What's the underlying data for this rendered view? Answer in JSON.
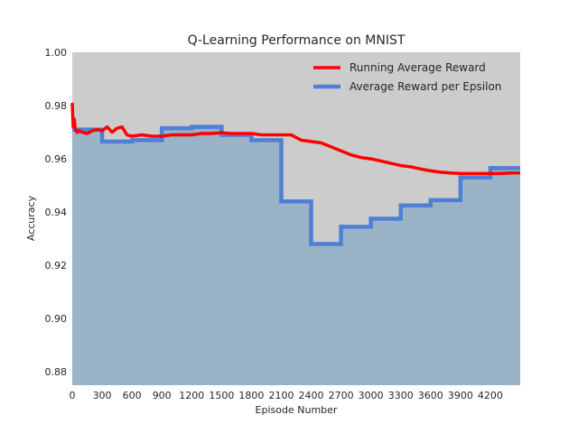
{
  "chart_data": {
    "type": "line",
    "title": "Q-Learning Performance on MNIST",
    "xlabel": "Episode Number",
    "ylabel": "Accuracy",
    "xlim": [
      0,
      4500
    ],
    "ylim": [
      0.875,
      1.0
    ],
    "xticks": [
      0,
      300,
      600,
      900,
      1200,
      1500,
      1800,
      2100,
      2400,
      2700,
      3000,
      3300,
      3600,
      3900,
      4200
    ],
    "xtick_labels": [
      "0",
      "300",
      "600",
      "900",
      "1200",
      "1500",
      "1800",
      "2100",
      "2400",
      "2700",
      "3000",
      "3300",
      "3600",
      "3900",
      "4200"
    ],
    "yticks": [
      0.88,
      0.9,
      0.92,
      0.94,
      0.96,
      0.98,
      1.0
    ],
    "ytick_labels": [
      "0.88",
      "0.90",
      "0.92",
      "0.94",
      "0.96",
      "0.98",
      "1.00"
    ],
    "grid": false,
    "background_color": "#cccccc",
    "legend_position": "top-right",
    "series": [
      {
        "name": "Running Average Reward",
        "color": "#ff0000",
        "style": "line",
        "x": [
          0,
          5,
          10,
          20,
          30,
          50,
          70,
          100,
          150,
          200,
          250,
          300,
          350,
          400,
          450,
          500,
          550,
          600,
          700,
          800,
          900,
          1000,
          1100,
          1200,
          1300,
          1400,
          1500,
          1600,
          1700,
          1800,
          1900,
          2000,
          2100,
          2200,
          2300,
          2400,
          2500,
          2600,
          2700,
          2800,
          2900,
          3000,
          3100,
          3200,
          3300,
          3400,
          3500,
          3600,
          3700,
          3800,
          3900,
          4000,
          4100,
          4200,
          4300,
          4400,
          4500
        ],
        "y": [
          0.981,
          0.976,
          0.972,
          0.975,
          0.971,
          0.97,
          0.9705,
          0.97,
          0.9695,
          0.9705,
          0.971,
          0.9705,
          0.972,
          0.97,
          0.9715,
          0.972,
          0.969,
          0.9685,
          0.969,
          0.9685,
          0.9685,
          0.969,
          0.969,
          0.969,
          0.9695,
          0.9695,
          0.9698,
          0.9695,
          0.9695,
          0.9695,
          0.969,
          0.969,
          0.969,
          0.969,
          0.967,
          0.9665,
          0.966,
          0.9645,
          0.963,
          0.9615,
          0.9605,
          0.96,
          0.9592,
          0.9583,
          0.9575,
          0.957,
          0.9562,
          0.9555,
          0.955,
          0.9547,
          0.9545,
          0.9545,
          0.9545,
          0.9545,
          0.9545,
          0.9547,
          0.9547
        ]
      },
      {
        "name": "Average Reward per Epsilon",
        "color": "#4f7fd6",
        "style": "step",
        "x": [
          0,
          300,
          600,
          900,
          1200,
          1500,
          1800,
          2100,
          2400,
          2700,
          3000,
          3300,
          3600,
          3900,
          4200,
          4500
        ],
        "y": [
          0.971,
          0.9665,
          0.967,
          0.9715,
          0.972,
          0.969,
          0.967,
          0.944,
          0.928,
          0.9345,
          0.9375,
          0.9425,
          0.9445,
          0.953,
          0.9565,
          0.9565
        ],
        "fill_color": "#9ab3c6"
      }
    ]
  }
}
